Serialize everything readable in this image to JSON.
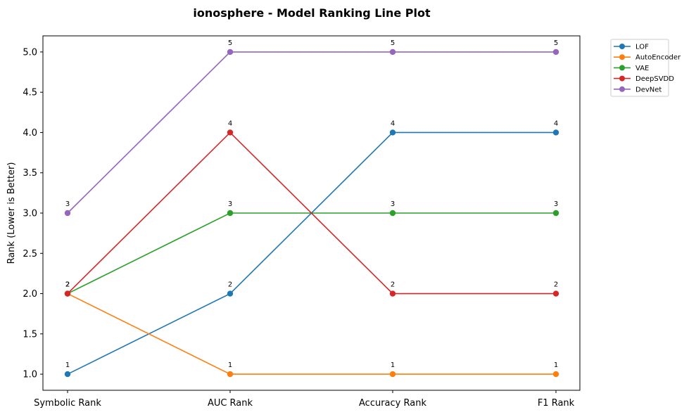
{
  "chart_data": {
    "type": "line",
    "title": "ionosphere - Model Ranking Line Plot",
    "xlabel": "",
    "ylabel": "Rank (Lower is Better)",
    "categories": [
      "Symbolic Rank",
      "AUC Rank",
      "Accuracy Rank",
      "F1 Rank"
    ],
    "ylim": [
      0.8,
      5.2
    ],
    "yticks": [
      "1.0",
      "1.5",
      "2.0",
      "2.5",
      "3.0",
      "3.5",
      "4.0",
      "4.5",
      "5.0"
    ],
    "grid": false,
    "legend_position": "outside-top-right",
    "series": [
      {
        "name": "LOF",
        "color": "#1f77b4",
        "values": [
          1,
          2,
          4,
          4
        ],
        "labels": [
          "1",
          "2",
          "4",
          "4"
        ]
      },
      {
        "name": "AutoEncoder",
        "color": "#ff7f0e",
        "values": [
          2,
          1,
          1,
          1
        ],
        "labels": [
          "2",
          "1",
          "1",
          "1"
        ]
      },
      {
        "name": "VAE",
        "color": "#2ca02c",
        "values": [
          2,
          3,
          3,
          3
        ],
        "labels": [
          "2",
          "3",
          "3",
          "3"
        ]
      },
      {
        "name": "DeepSVDD",
        "color": "#d62728",
        "values": [
          2,
          4,
          2,
          2
        ],
        "labels": [
          "2",
          "4",
          "2",
          "2"
        ]
      },
      {
        "name": "DevNet",
        "color": "#9467bd",
        "values": [
          3,
          5,
          5,
          5
        ],
        "labels": [
          "3",
          "5",
          "5",
          "5"
        ]
      }
    ]
  }
}
